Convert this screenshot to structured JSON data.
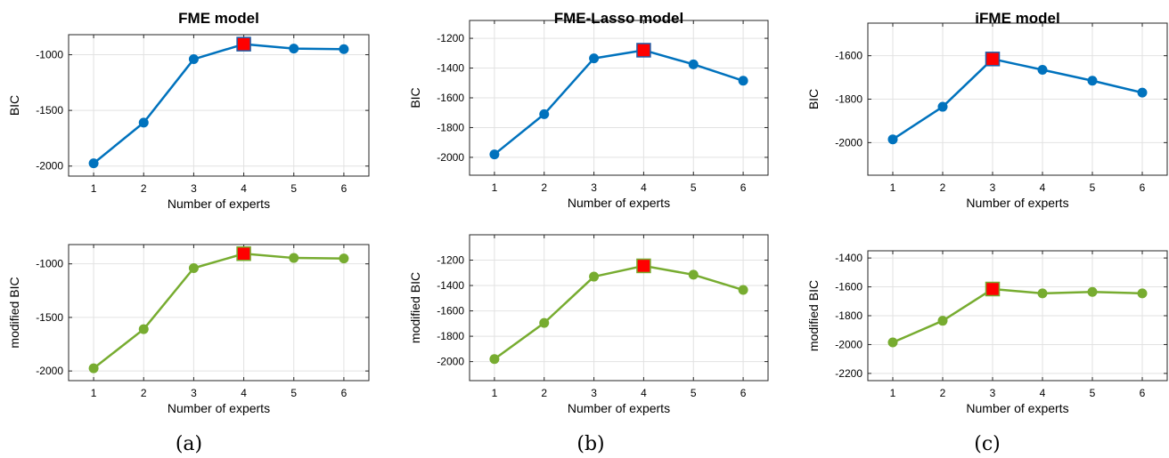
{
  "colors": {
    "bic_line": "#0072BD",
    "modified_bic_line": "#77AC30",
    "selected_marker_fill": "#FF0000",
    "selected_marker_edge_bic": "#1F5FA8",
    "selected_marker_edge_modified": "#77AC30"
  },
  "chart_data": [
    {
      "id": "fme-bic",
      "type": "line",
      "title": "FME model",
      "xlabel": "Number of experts",
      "ylabel": "BIC",
      "x": [
        1,
        2,
        3,
        4,
        5,
        6
      ],
      "xlim": [
        0.5,
        6.5
      ],
      "xticks": [
        1,
        2,
        3,
        4,
        5,
        6
      ],
      "ylim": [
        -2090,
        -820
      ],
      "yticks": [
        -2000,
        -1500,
        -1000
      ],
      "grid": true,
      "series": [
        {
          "values": [
            -1975,
            -1610,
            -1040,
            -905,
            -945,
            -950
          ],
          "color": "#0072BD",
          "marker": "circle"
        }
      ],
      "selected": {
        "x": 4,
        "y": -905
      }
    },
    {
      "id": "fme-lasso-bic",
      "type": "line",
      "title": "FME-Lasso model",
      "xlabel": "Number of experts",
      "ylabel": "BIC",
      "x": [
        1,
        2,
        3,
        4,
        5,
        6
      ],
      "xlim": [
        0.5,
        6.5
      ],
      "xticks": [
        1,
        2,
        3,
        4,
        5,
        6
      ],
      "ylim": [
        -2120,
        -1080
      ],
      "yticks": [
        -2000,
        -1800,
        -1600,
        -1400,
        -1200
      ],
      "grid": true,
      "series": [
        {
          "values": [
            -1980,
            -1710,
            -1335,
            -1280,
            -1375,
            -1485
          ],
          "color": "#0072BD",
          "marker": "circle"
        }
      ],
      "selected": {
        "x": 4,
        "y": -1280
      }
    },
    {
      "id": "ifme-bic",
      "type": "line",
      "title": "iFME model",
      "xlabel": "Number of experts",
      "ylabel": "BIC",
      "x": [
        1,
        2,
        3,
        4,
        5,
        6
      ],
      "xlim": [
        0.5,
        6.5
      ],
      "xticks": [
        1,
        2,
        3,
        4,
        5,
        6
      ],
      "ylim": [
        -2150,
        -1450
      ],
      "yticks": [
        -2000,
        -1800,
        -1600
      ],
      "grid": true,
      "series": [
        {
          "values": [
            -1985,
            -1835,
            -1615,
            -1665,
            -1715,
            -1770
          ],
          "color": "#0072BD",
          "marker": "circle"
        }
      ],
      "selected": {
        "x": 3,
        "y": -1615
      }
    },
    {
      "id": "fme-modified-bic",
      "type": "line",
      "title": "",
      "xlabel": "Number of experts",
      "ylabel": "modified BIC",
      "x": [
        1,
        2,
        3,
        4,
        5,
        6
      ],
      "xlim": [
        0.5,
        6.5
      ],
      "xticks": [
        1,
        2,
        3,
        4,
        5,
        6
      ],
      "ylim": [
        -2090,
        -820
      ],
      "yticks": [
        -2000,
        -1500,
        -1000
      ],
      "grid": true,
      "series": [
        {
          "values": [
            -1975,
            -1610,
            -1040,
            -905,
            -945,
            -950
          ],
          "color": "#77AC30",
          "marker": "circle"
        }
      ],
      "selected": {
        "x": 4,
        "y": -905
      }
    },
    {
      "id": "fme-lasso-modified-bic",
      "type": "line",
      "title": "",
      "xlabel": "Number of experts",
      "ylabel": "modified BIC",
      "x": [
        1,
        2,
        3,
        4,
        5,
        6
      ],
      "xlim": [
        0.5,
        6.5
      ],
      "xticks": [
        1,
        2,
        3,
        4,
        5,
        6
      ],
      "ylim": [
        -2150,
        -1000
      ],
      "yticks": [
        -2000,
        -1800,
        -1600,
        -1400,
        -1200
      ],
      "grid": true,
      "series": [
        {
          "values": [
            -1980,
            -1695,
            -1330,
            -1245,
            -1315,
            -1435
          ],
          "color": "#77AC30",
          "marker": "circle"
        }
      ],
      "selected": {
        "x": 4,
        "y": -1245
      }
    },
    {
      "id": "ifme-modified-bic",
      "type": "line",
      "title": "",
      "xlabel": "Number of experts",
      "ylabel": "modified BIC",
      "x": [
        1,
        2,
        3,
        4,
        5,
        6
      ],
      "xlim": [
        0.5,
        6.5
      ],
      "xticks": [
        1,
        2,
        3,
        4,
        5,
        6
      ],
      "ylim": [
        -2250,
        -1350
      ],
      "yticks": [
        -2200,
        -2000,
        -1800,
        -1600,
        -1400
      ],
      "grid": true,
      "series": [
        {
          "values": [
            -1985,
            -1835,
            -1615,
            -1645,
            -1635,
            -1645
          ],
          "color": "#77AC30",
          "marker": "circle"
        }
      ],
      "selected": {
        "x": 3,
        "y": -1615
      }
    }
  ],
  "captions": [
    "(a)",
    "(b)",
    "(c)"
  ]
}
